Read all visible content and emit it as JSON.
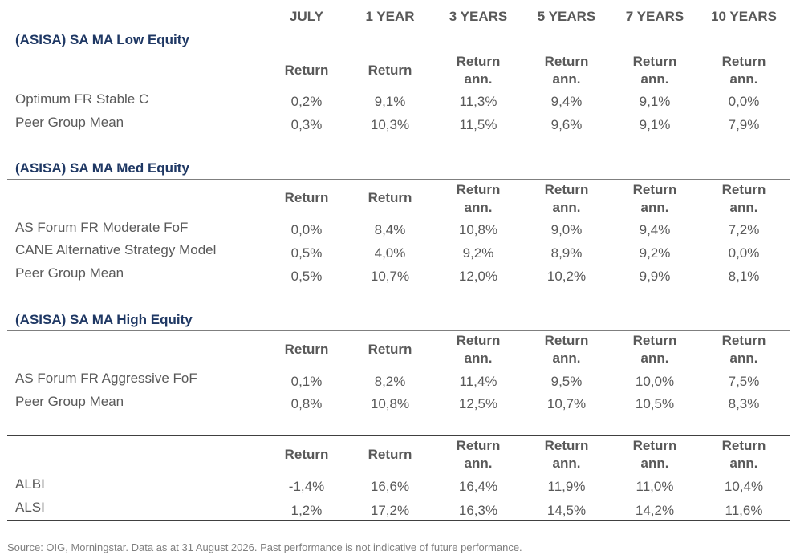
{
  "columns": [
    "JULY",
    "1 YEAR",
    "3 YEARS",
    "5 YEARS",
    "7 YEARS",
    "10 YEARS"
  ],
  "subheaders": {
    "return": "Return",
    "return_ann_line1": "Return",
    "return_ann_line2": "ann."
  },
  "groups": [
    {
      "title": "(ASISA) SA MA Low Equity",
      "rows": [
        {
          "label": "Optimum FR Stable C",
          "values": [
            "0,2%",
            "9,1%",
            "11,3%",
            "9,4%",
            "9,1%",
            "0,0%"
          ]
        },
        {
          "label": "Peer Group Mean",
          "values": [
            "0,3%",
            "10,3%",
            "11,5%",
            "9,6%",
            "9,1%",
            "7,9%"
          ]
        }
      ]
    },
    {
      "title": "(ASISA) SA MA Med Equity",
      "rows": [
        {
          "label": "AS Forum FR Moderate FoF",
          "values": [
            "0,0%",
            "8,4%",
            "10,8%",
            "9,0%",
            "9,4%",
            "7,2%"
          ]
        },
        {
          "label": "CANE Alternative Strategy Model",
          "values": [
            "0,5%",
            "4,0%",
            "9,2%",
            "8,9%",
            "9,2%",
            "0,0%"
          ]
        },
        {
          "label": "Peer Group Mean",
          "values": [
            "0,5%",
            "10,7%",
            "12,0%",
            "10,2%",
            "9,9%",
            "8,1%"
          ]
        }
      ]
    },
    {
      "title": "(ASISA) SA MA High Equity",
      "rows": [
        {
          "label": "AS Forum FR Aggressive FoF",
          "values": [
            "0,1%",
            "8,2%",
            "11,4%",
            "9,5%",
            "10,0%",
            "7,5%"
          ]
        },
        {
          "label": "Peer Group Mean",
          "values": [
            "0,8%",
            "10,8%",
            "12,5%",
            "10,7%",
            "10,5%",
            "8,3%"
          ]
        }
      ]
    },
    {
      "title": "",
      "rows": [
        {
          "label": "ALBI",
          "values": [
            "-1,4%",
            "16,6%",
            "16,4%",
            "11,9%",
            "11,0%",
            "10,4%"
          ]
        },
        {
          "label": "ALSI",
          "values": [
            "1,2%",
            "17,2%",
            "16,3%",
            "14,5%",
            "14,2%",
            "11,6%"
          ]
        }
      ]
    }
  ],
  "footer": "Source: OIG, Morningstar. Data as at 31 August 2026. Past performance is not indicative of future performance."
}
